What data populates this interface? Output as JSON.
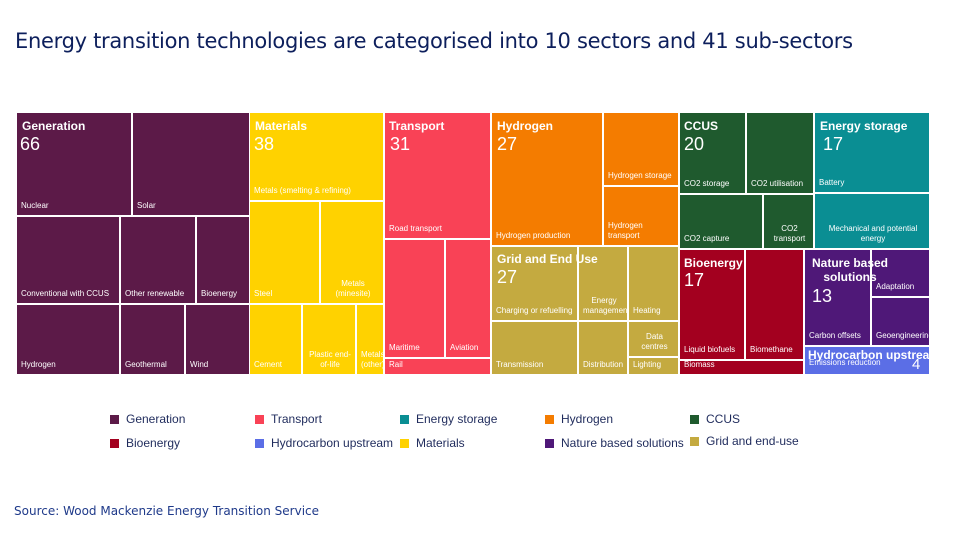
{
  "title": "Energy transition technologies are categorised into 10 sectors and 41 sub-sectors",
  "source": "Source: Wood Mackenzie Energy Transition Service",
  "chart_data": {
    "type": "treemap",
    "title": "Energy transition technologies are categorised into 10 sectors and 41 sub-sectors",
    "sectors": [
      {
        "name": "Generation",
        "count": 66,
        "color": "#5c1a48",
        "subsectors": [
          "Nuclear",
          "Solar",
          "Conventional with CCUS",
          "Other renewable",
          "Bioenergy",
          "Hydrogen",
          "Geothermal",
          "Wind"
        ]
      },
      {
        "name": "Materials",
        "count": 38,
        "color": "#ffd200",
        "subsectors": [
          "Metals (smelting & refining)",
          "Steel",
          "Metals (minesite)",
          "Cement",
          "Plastic end-of-life",
          "Metals (other)"
        ]
      },
      {
        "name": "Transport",
        "count": 31,
        "color": "#f94256",
        "subsectors": [
          "Road transport",
          "Maritime",
          "Aviation",
          "Rail"
        ]
      },
      {
        "name": "Hydrogen",
        "count": 27,
        "color": "#f47c00",
        "subsectors": [
          "Hydrogen production",
          "Hydrogen storage",
          "Hydrogen transport"
        ]
      },
      {
        "name": "Grid and End Use",
        "count": 27,
        "color": "#c4aa40",
        "subsectors": [
          "Charging or refuelling",
          "Transmission",
          "Energy management",
          "Distribution",
          "Heating",
          "Data centres",
          "Lighting"
        ]
      },
      {
        "name": "CCUS",
        "count": 20,
        "color": "#1f5a2e",
        "subsectors": [
          "CO2 storage",
          "CO2 utilisation",
          "CO2 capture",
          "CO2 transport"
        ]
      },
      {
        "name": "Energy storage",
        "count": 17,
        "color": "#0a8e93",
        "subsectors": [
          "Battery",
          "Mechanical and potential energy"
        ]
      },
      {
        "name": "Bioenergy",
        "count": 17,
        "color": "#a3001f",
        "subsectors": [
          "Liquid biofuels",
          "Biomethane",
          "Biomass"
        ]
      },
      {
        "name": "Nature based solutions",
        "count": 13,
        "color": "#4f1878",
        "subsectors": [
          "Carbon offsets",
          "Adaptation",
          "Geoengineering"
        ]
      },
      {
        "name": "Hydrocarbon upstream",
        "count": 4,
        "color": "#5b6ee6",
        "subsectors": [
          "Emissions reduction"
        ]
      }
    ],
    "legend": {
      "placement": "bottom",
      "items": [
        {
          "label": "Generation",
          "color": "#5c1a48"
        },
        {
          "label": "Transport",
          "color": "#f94256"
        },
        {
          "label": "Energy storage",
          "color": "#0a8e93"
        },
        {
          "label": "Hydrogen",
          "color": "#f47c00"
        },
        {
          "label": "CCUS",
          "color": "#1f5a2e"
        },
        {
          "label": "Bioenergy",
          "color": "#a3001f"
        },
        {
          "label": "Hydrocarbon upstream",
          "color": "#5b6ee6"
        },
        {
          "label": "Materials",
          "color": "#ffd200"
        },
        {
          "label": "Nature based solutions",
          "color": "#4f1878"
        },
        {
          "label": "Grid and end-use",
          "color": "#c4aa40"
        }
      ]
    }
  }
}
